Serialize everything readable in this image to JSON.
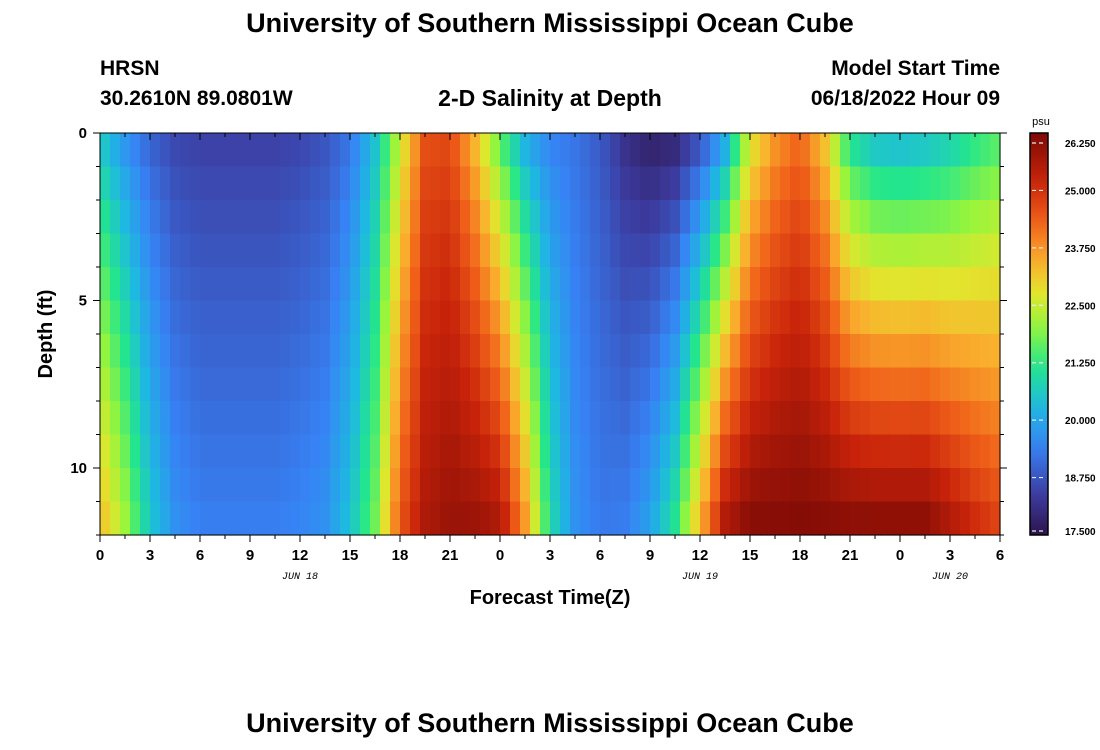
{
  "header": {
    "main_title": "University of Southern Mississippi Ocean Cube",
    "station": "HRSN",
    "coords": "30.2610N  89.0801W",
    "plot_title": "2-D Salinity at Depth",
    "start_label": "Model Start Time",
    "start_value": "06/18/2022 Hour 09",
    "footer_title": "University of Southern Mississippi Ocean Cube"
  },
  "chart_data": {
    "type": "heatmap",
    "title": "2-D Salinity at Depth",
    "xlabel": "Forecast Time(Z)",
    "ylabel": "Depth (ft)",
    "x_ticks": [
      "0",
      "3",
      "6",
      "9",
      "12",
      "15",
      "18",
      "21",
      "0",
      "3",
      "6",
      "9",
      "12",
      "15",
      "18",
      "21",
      "0",
      "3",
      "6"
    ],
    "date_labels": [
      "JUN 18",
      "JUN 19",
      "JUN 20"
    ],
    "y_ticks": [
      "0",
      "5",
      "10"
    ],
    "xlim_hours": [
      0,
      54
    ],
    "ylim_ft": [
      0,
      12
    ],
    "colorbar": {
      "unit": "psu",
      "ticks": [
        "26.250",
        "25.000",
        "23.750",
        "22.500",
        "21.250",
        "20.000",
        "18.750",
        "17.500"
      ],
      "range": [
        17.5,
        26.25
      ]
    },
    "surface_salinity_psu": [
      20.5,
      19.6,
      18.9,
      18.5,
      18.4,
      18.4,
      18.4,
      18.4,
      18.5,
      18.7,
      19.2,
      20.4,
      22.4,
      24.5,
      24.6,
      23.2,
      21.4,
      20.0,
      19.4,
      19.2,
      18.8,
      18.1,
      17.7,
      17.8,
      18.5,
      19.8,
      22.5,
      23.6,
      24.2,
      23.0,
      20.8,
      20.2,
      20.1,
      20.2,
      20.5,
      21.0,
      21.4
    ],
    "bottom_salinity_psu": [
      23.4,
      22.2,
      20.6,
      19.7,
      19.4,
      19.4,
      19.4,
      19.4,
      19.5,
      19.7,
      20.5,
      21.8,
      24.5,
      25.6,
      25.9,
      25.9,
      25.7,
      23.8,
      21.0,
      19.7,
      19.3,
      19.4,
      20.0,
      21.2,
      23.5,
      25.7,
      26.2,
      26.2,
      26.2,
      26.2,
      26.2,
      26.2,
      26.2,
      26.2,
      25.7,
      25.2,
      24.8
    ],
    "series_time_hours": [
      0,
      1.5,
      3,
      4.5,
      6,
      7.5,
      9,
      10.5,
      12,
      13.5,
      15,
      16.5,
      18,
      19.5,
      21,
      22.5,
      24,
      25.5,
      27,
      28.5,
      30,
      31.5,
      33,
      34.5,
      36,
      37.5,
      39,
      40.5,
      42,
      43.5,
      45,
      46.5,
      48,
      49.5,
      51,
      52.5,
      54
    ]
  }
}
